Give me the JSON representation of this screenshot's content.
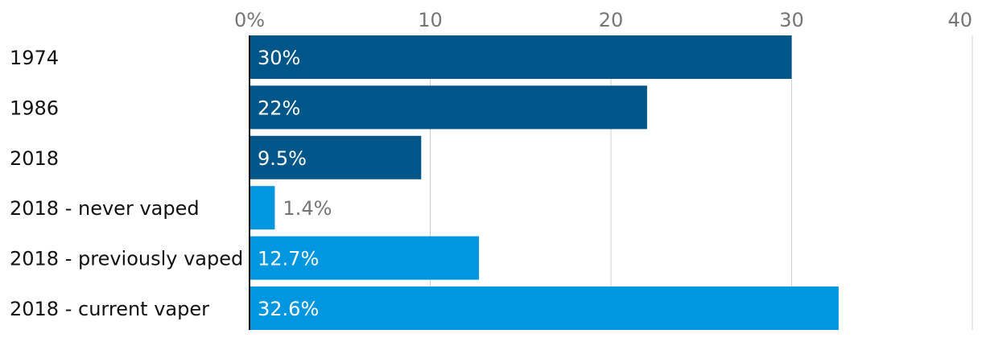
{
  "chart_data": {
    "type": "bar",
    "orientation": "horizontal",
    "title": "",
    "xlabel": "",
    "ylabel": "",
    "xlim": [
      0,
      40
    ],
    "ticks": [
      0,
      10,
      20,
      30,
      40
    ],
    "tick_labels": [
      "0%",
      "10",
      "20",
      "30",
      "40"
    ],
    "grid": true,
    "categories": [
      "1974",
      "1986",
      "2018",
      "2018 - never vaped",
      "2018 - previously vaped",
      "2018 - current vaper"
    ],
    "values": [
      30,
      22,
      9.5,
      1.4,
      12.7,
      32.6
    ],
    "value_labels": [
      "30%",
      "22%",
      "9.5%",
      "1.4%",
      "12.7%",
      "32.6%"
    ],
    "bar_colors": [
      "#005689",
      "#005689",
      "#005689",
      "#0096e0",
      "#0096e0",
      "#0096e0"
    ]
  },
  "colors": {
    "label_inside": "#ffffff",
    "label_outside": "#767676"
  }
}
